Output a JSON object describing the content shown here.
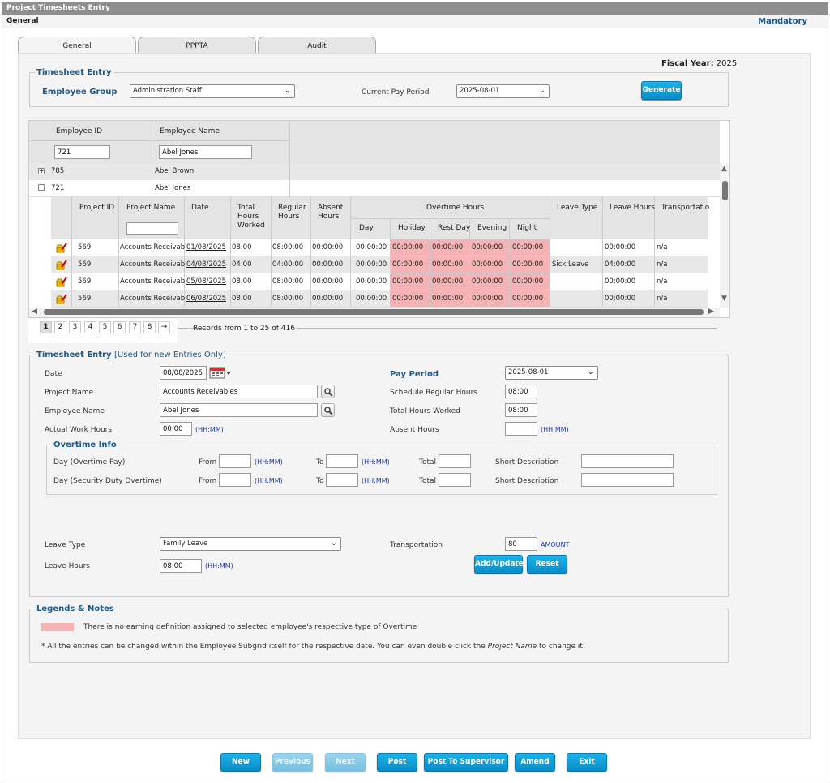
{
  "window": {
    "title": "Project Timesheets Entry",
    "section": "General",
    "mandatory": "Mandatory"
  },
  "tabs": [
    {
      "label": "General"
    },
    {
      "label": "PPPTA"
    },
    {
      "label": "Audit"
    }
  ],
  "fiscal": {
    "label": "Fiscal Year:",
    "value": "2025"
  },
  "entry_top": {
    "legend": "Timesheet Entry",
    "employee_group_label": "Employee Group",
    "employee_group_value": "Administration Staff",
    "pay_period_label": "Current Pay Period",
    "pay_period_value": "2025-08-01",
    "generate_label": "Generate"
  },
  "grid": {
    "col_emp_id": "Employee ID",
    "col_emp_name": "Employee Name",
    "filter_id": "721",
    "filter_name": "Abel Jones",
    "employees": [
      {
        "id": "785",
        "name": "Abel Brown"
      },
      {
        "id": "721",
        "name": "Abel Jones"
      }
    ],
    "sub_headers": {
      "project_id": "Project ID",
      "project_name": "Project Name",
      "date": "Date",
      "total_hours": "Total Hours Worked",
      "regular_hours": "Regular Hours",
      "absent_hours": "Absent Hours",
      "overtime": "Overtime Hours",
      "day": "Day",
      "holiday": "Holiday",
      "rest_day": "Rest Day",
      "evening": "Evening",
      "night": "Night",
      "leave_type": "Leave Type",
      "leave_hours": "Leave Hours",
      "transportation": "Transportatio"
    },
    "rows": [
      {
        "pid": "569",
        "pname": "Accounts Receivable",
        "date": "01/08/2025",
        "total": "08:00",
        "regular": "08:00:00",
        "absent": "00:00:00",
        "day": "00:00:00",
        "holiday": "00:00:00",
        "rest": "00:00:00",
        "evening": "00:00:00",
        "night": "00:00:00",
        "leave_type": "",
        "leave_hours": "00:00:00",
        "transport": "n/a"
      },
      {
        "pid": "569",
        "pname": "Accounts Receivable",
        "date": "04/08/2025",
        "total": "04:00",
        "regular": "04:00:00",
        "absent": "00:00:00",
        "day": "00:00:00",
        "holiday": "00:00:00",
        "rest": "00:00:00",
        "evening": "00:00:00",
        "night": "00:00:00",
        "leave_type": "Sick Leave",
        "leave_hours": "04:00:00",
        "transport": "n/a"
      },
      {
        "pid": "569",
        "pname": "Accounts Receivable",
        "date": "05/08/2025",
        "total": "08:00",
        "regular": "08:00:00",
        "absent": "00:00:00",
        "day": "00:00:00",
        "holiday": "00:00:00",
        "rest": "00:00:00",
        "evening": "00:00:00",
        "night": "00:00:00",
        "leave_type": "",
        "leave_hours": "00:00:00",
        "transport": "n/a"
      },
      {
        "pid": "569",
        "pname": "Accounts Receivable",
        "date": "06/08/2025",
        "total": "08:00",
        "regular": "08:00:00",
        "absent": "00:00:00",
        "day": "00:00:00",
        "holiday": "00:00:00",
        "rest": "00:00:00",
        "evening": "00:00:00",
        "night": "00:00:00",
        "leave_type": "",
        "leave_hours": "00:00:00",
        "transport": "n/a"
      }
    ],
    "pager": {
      "pages": [
        "1",
        "2",
        "3",
        "4",
        "5",
        "6",
        "7",
        "8"
      ],
      "next": "→",
      "records": "Records from 1 to 25 of 416"
    }
  },
  "entry_form": {
    "legend": "Timesheet Entry",
    "legend_sub": "[Used for new Entries Only]",
    "date_label": "Date",
    "date_value": "08/08/2025",
    "project_label": "Project Name",
    "project_value": "Accounts Receivables",
    "employee_label": "Employee Name",
    "employee_value": "Abel Jones",
    "actual_label": "Actual Work Hours",
    "actual_value": "00:00",
    "hhmm": "(HH:MM)",
    "pay_period_label": "Pay Period",
    "pay_period_value": "2025-08-01",
    "sched_label": "Schedule Regular Hours",
    "sched_value": "08:00",
    "total_worked_label": "Total Hours Worked",
    "total_worked_value": "08:00",
    "absent_label": "Absent Hours",
    "absent_value": "",
    "overtime_legend": "Overtime Info",
    "ot_rows": [
      {
        "label": "Day (Overtime Pay)"
      },
      {
        "label": "Day (Security Duty Overtime)"
      }
    ],
    "from_label": "From",
    "to_label": "To",
    "total_label": "Total",
    "short_desc_label": "Short Description",
    "leave_type_label": "Leave Type",
    "leave_type_value": "Family Leave",
    "leave_hours_label": "Leave Hours",
    "leave_hours_value": "08:00",
    "transport_label": "Transportation",
    "transport_value": "80",
    "amount": "AMOUNT",
    "add_label": "Add/Update",
    "reset_label": "Reset"
  },
  "legends": {
    "legend": "Legends & Notes",
    "note1": "There is no earning definition assigned to selected employee's respective type of Overtime",
    "note2_a": "*  All the entries can be changed within the Employee Subgrid itself for the respective date. You can even double click the ",
    "note2_em": "Project Name",
    "note2_b": " to change it.",
    "pink_color": "#f5b3b5"
  },
  "footer_buttons": {
    "new": "New",
    "previous": "Previous",
    "next": "Next",
    "post": "Post",
    "post_supervisor": "Post To Supervisor",
    "amend": "Amend",
    "exit": "Exit"
  }
}
